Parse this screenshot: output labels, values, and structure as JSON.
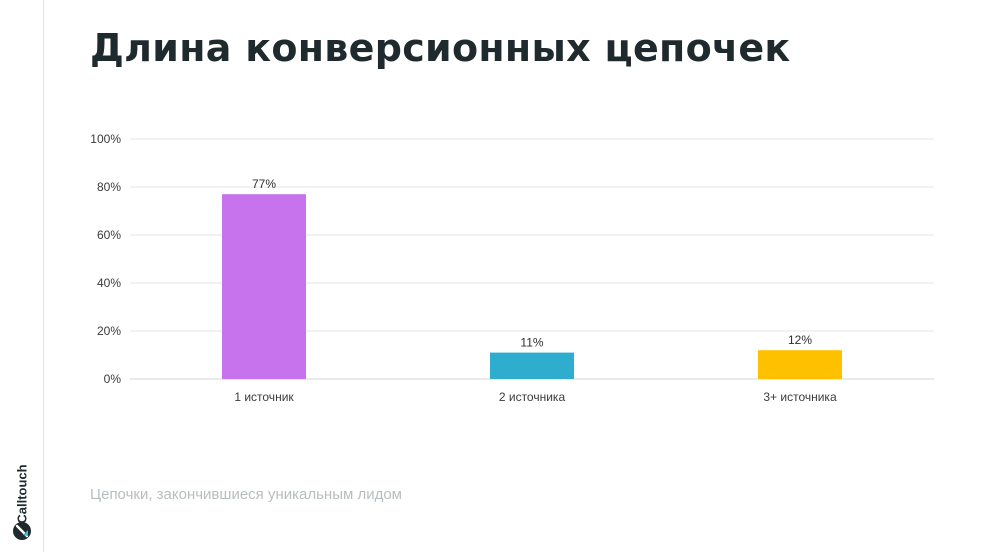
{
  "header": {
    "title": "Длина конверсионных цепочек"
  },
  "brand": {
    "logo_text": "Calltouch",
    "logo_icon": "calltouch-logo-icon"
  },
  "footer": {
    "caption": "Цепочки, закончившиеся уникальным лидом"
  },
  "chart_data": {
    "type": "bar",
    "title": "Длина конверсионных цепочек",
    "xlabel": "",
    "ylabel": "",
    "categories": [
      "1 источник",
      "2 источника",
      "3+ источника"
    ],
    "values": [
      77,
      11,
      12
    ],
    "data_labels": [
      "77%",
      "11%",
      "12%"
    ],
    "colors": [
      "#c873ee",
      "#2fadcf",
      "#ffc000"
    ],
    "ylim": [
      0,
      100
    ],
    "yticks": [
      0,
      20,
      40,
      60,
      80,
      100
    ],
    "ytick_labels": [
      "0%",
      "20%",
      "40%",
      "60%",
      "80%",
      "100%"
    ],
    "grid": true,
    "legend": "none"
  }
}
